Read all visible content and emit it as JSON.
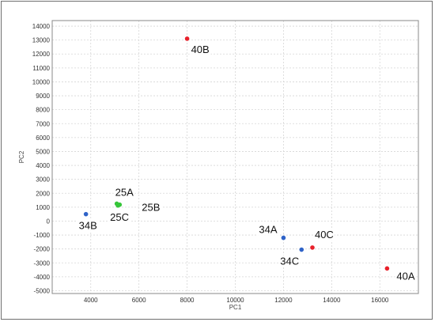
{
  "chart_data": {
    "type": "scatter",
    "xlabel": "PC1",
    "ylabel": "PC2",
    "xlim": [
      2400,
      17600
    ],
    "ylim": [
      -5200,
      14400
    ],
    "xticks": [
      4000,
      6000,
      8000,
      10000,
      12000,
      14000,
      16000
    ],
    "yticks": [
      -5000,
      -4000,
      -3000,
      -2000,
      -1000,
      0,
      1000,
      2000,
      3000,
      4000,
      5000,
      6000,
      7000,
      8000,
      9000,
      10000,
      11000,
      12000,
      13000,
      14000
    ],
    "grid": true,
    "colors": {
      "red": "#e8202a",
      "blue": "#2f63c8",
      "green": "#36c63a"
    },
    "points": [
      {
        "label": "40B",
        "x": 8000,
        "y": 13100,
        "color": "red"
      },
      {
        "label": "25A",
        "x": 5080,
        "y": 1250,
        "color": "green"
      },
      {
        "label": "25B",
        "x": 5200,
        "y": 1180,
        "color": "green"
      },
      {
        "label": "25C",
        "x": 5130,
        "y": 1120,
        "color": "green"
      },
      {
        "label": "34B",
        "x": 3800,
        "y": 500,
        "color": "blue"
      },
      {
        "label": "34A",
        "x": 12000,
        "y": -1200,
        "color": "blue"
      },
      {
        "label": "34C",
        "x": 12750,
        "y": -2050,
        "color": "blue"
      },
      {
        "label": "40C",
        "x": 13200,
        "y": -1900,
        "color": "red"
      },
      {
        "label": "40A",
        "x": 16300,
        "y": -3400,
        "color": "red"
      }
    ]
  }
}
